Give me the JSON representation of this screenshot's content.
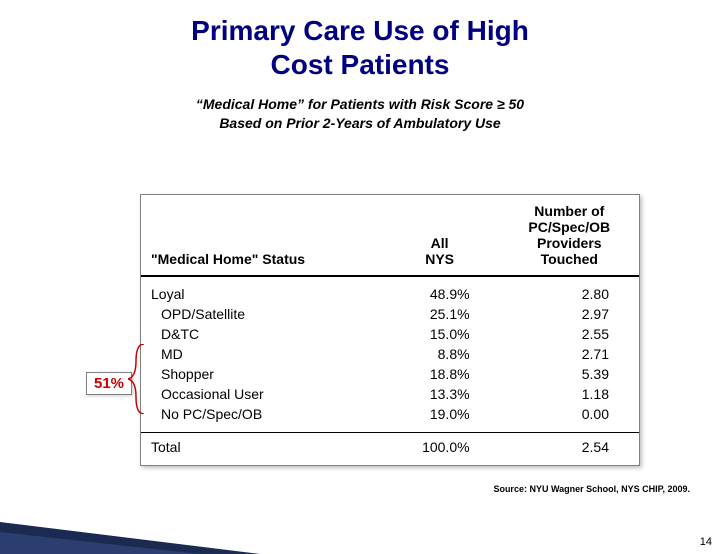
{
  "title_line1": "Primary Care Use of High",
  "title_line2": "Cost Patients",
  "subtitle_line1": "“Medical Home” for Patients with Risk Score ≥ 50",
  "subtitle_line2": "Based on Prior 2-Years of Ambulatory Use",
  "callout": "51%",
  "table": {
    "headers": {
      "c1": "\"Medical Home\" Status",
      "c2_l1": "All",
      "c2_l2": "NYS",
      "c3_l1": "Number of",
      "c3_l2": "PC/Spec/OB",
      "c3_l3": "Providers",
      "c3_l4": "Touched"
    },
    "rows": [
      {
        "label": "Loyal",
        "nys": "48.9%",
        "touched": "2.80",
        "loyal": true
      },
      {
        "label": "OPD/Satellite",
        "nys": "25.1%",
        "touched": "2.97"
      },
      {
        "label": "D&TC",
        "nys": "15.0%",
        "touched": "2.55"
      },
      {
        "label": "MD",
        "nys": "8.8%",
        "touched": "2.71"
      },
      {
        "label": "Shopper",
        "nys": "18.8%",
        "touched": "5.39"
      },
      {
        "label": "Occasional User",
        "nys": "13.3%",
        "touched": "1.18"
      },
      {
        "label": "No PC/Spec/OB",
        "nys": "19.0%",
        "touched": "0.00"
      }
    ],
    "total": {
      "label": "Total",
      "nys": "100.0%",
      "touched": "2.54"
    }
  },
  "source": "Source: NYU Wagner School, NYS CHIP, 2009.",
  "pagenum": "14",
  "colors": {
    "title": "#000080",
    "callout_text": "#cc0000",
    "bracket": "#cc0000",
    "table_border": "#808080"
  }
}
